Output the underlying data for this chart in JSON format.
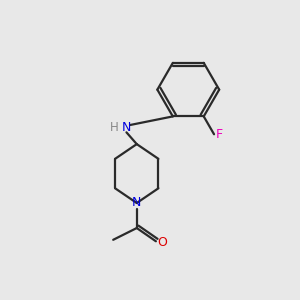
{
  "background_color": "#e8e8e8",
  "bond_color": "#2a2a2a",
  "N_color": "#0000dd",
  "O_color": "#dd0000",
  "F_color": "#ee00bb",
  "H_color": "#888888",
  "line_width": 1.6,
  "fig_size": [
    3.0,
    3.0
  ],
  "dpi": 100,
  "xlim": [
    0,
    10
  ],
  "ylim": [
    0,
    10
  ]
}
